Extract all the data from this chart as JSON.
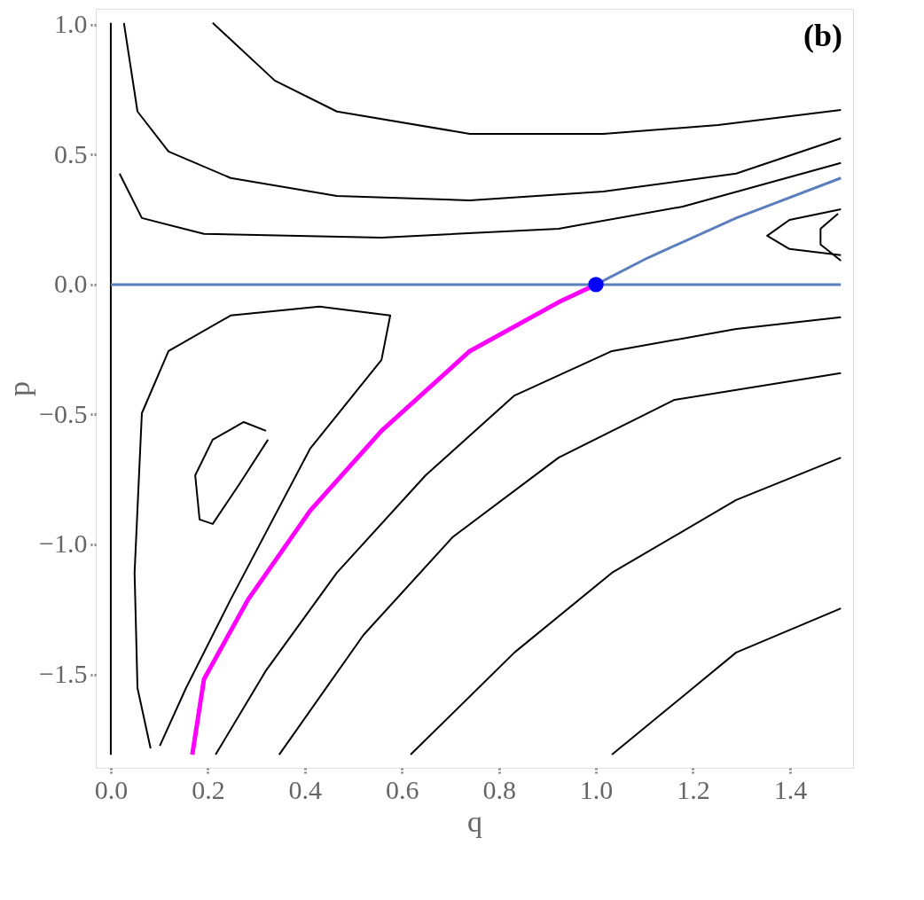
{
  "chart_data": {
    "type": "line",
    "xlabel": "q",
    "ylabel": "p",
    "xlim": [
      -0.031,
      1.53
    ],
    "ylim": [
      -1.86,
      1.061
    ],
    "xticks": [
      {
        "value": 0,
        "label": "0.0"
      },
      0.2,
      0.4,
      0.6,
      0.8,
      {
        "value": 1,
        "label": "1.0"
      },
      1.2,
      1.4
    ],
    "yticks": [
      {
        "value": 1,
        "label": "1.0"
      },
      0.5,
      {
        "value": 0,
        "label": "0.0"
      },
      {
        "value": -0.5,
        "label": "−0.5"
      },
      {
        "value": -1,
        "label": "−1.0"
      },
      {
        "value": -1.5,
        "label": "−1.5"
      }
    ],
    "grid": false,
    "annotations": [
      "(b)"
    ],
    "series": [
      {
        "color": "#000000",
        "x": [
          0.21,
          0.338,
          0.466,
          0.74,
          1.015,
          1.252,
          1.505
        ],
        "values": [
          1.007,
          0.785,
          0.666,
          0.58,
          0.58,
          0.614,
          0.672
        ]
      },
      {
        "color": "#000000",
        "x": [
          0.027,
          0.055,
          0.119,
          0.247,
          0.466,
          0.74,
          1.015,
          1.289,
          1.505
        ],
        "values": [
          1.007,
          0.666,
          0.512,
          0.41,
          0.341,
          0.324,
          0.358,
          0.427,
          0.563
        ]
      },
      {
        "color": "#000000",
        "x": [
          0,
          0
        ],
        "values": [
          1.007,
          -1.81
        ]
      },
      {
        "color": "#000000",
        "x": [
          0.018,
          0.064,
          0.192,
          0.558,
          0.923,
          1.179,
          1.505
        ],
        "values": [
          0.427,
          0.256,
          0.195,
          0.181,
          0.215,
          0.3,
          0.468
        ]
      },
      {
        "color": "#000000",
        "x": [
          1.505,
          1.399,
          1.353,
          1.399,
          1.505
        ],
        "values": [
          0.29,
          0.249,
          0.188,
          0.137,
          0.113
        ]
      },
      {
        "color": "#000000",
        "x": [
          1.499,
          1.463,
          1.463,
          1.505
        ],
        "values": [
          0.273,
          0.215,
          0.154,
          0.092
        ]
      },
      {
        "color": "#000000",
        "x": [
          1.505,
          1.289,
          1.033,
          0.832,
          0.649,
          0.466,
          0.32,
          0.216
        ],
        "values": [
          -0.126,
          -0.171,
          -0.256,
          -0.427,
          -0.734,
          -1.109,
          -1.485,
          -1.809
        ]
      },
      {
        "color": "#000000",
        "x": [
          1.505,
          1.161,
          0.923,
          0.704,
          0.521,
          0.347
        ],
        "values": [
          -0.341,
          -0.444,
          -0.666,
          -0.973,
          -1.348,
          -1.809
        ]
      },
      {
        "color": "#000000",
        "x": [
          1.505,
          1.289,
          1.033,
          0.832,
          0.618
        ],
        "values": [
          -0.666,
          -0.829,
          -1.109,
          -1.416,
          -1.809
        ]
      },
      {
        "color": "#000000",
        "x": [
          1.505,
          1.289,
          1.033
        ],
        "values": [
          -1.246,
          -1.416,
          -1.809
        ]
      },
      {
        "color": "#000000",
        "x": [
          0.082,
          0.055,
          0.049,
          0.064,
          0.119,
          0.247,
          0.43,
          0.576,
          0.558,
          0.411,
          0.247,
          0.155,
          0.101
        ],
        "values": [
          -1.785,
          -1.553,
          -1.109,
          -0.495,
          -0.256,
          -0.119,
          -0.085,
          -0.119,
          -0.29,
          -0.631,
          -1.212,
          -1.553,
          -1.775
        ]
      },
      {
        "color": "#000000",
        "x": [
          0.32,
          0.274,
          0.21,
          0.174,
          0.183,
          0.21,
          0.265,
          0.324
        ],
        "values": [
          -0.563,
          -0.529,
          -0.597,
          -0.734,
          -0.904,
          -0.921,
          -0.768,
          -0.597
        ]
      },
      {
        "color": "#5b7fbd",
        "x": [
          0,
          1.505
        ],
        "values": [
          0,
          0
        ]
      },
      {
        "color": "#5b7fbd",
        "x": [
          1.0,
          1.106,
          1.289,
          1.505
        ],
        "values": [
          0,
          0.102,
          0.256,
          0.41
        ]
      },
      {
        "color": "#ff00ff",
        "x": [
          1.0,
          0.923,
          0.74,
          0.558,
          0.411,
          0.283,
          0.192,
          0.168
        ],
        "values": [
          0,
          -0.068,
          -0.256,
          -0.563,
          -0.87,
          -1.212,
          -1.519,
          -1.809
        ]
      },
      {
        "type": "scatter",
        "color": "#0000ff",
        "x": [
          1.0
        ],
        "values": [
          0
        ]
      }
    ]
  }
}
